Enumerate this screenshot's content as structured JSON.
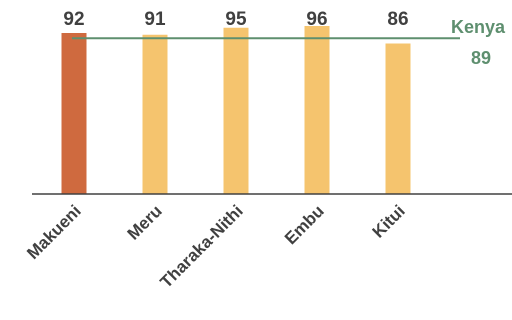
{
  "chart_data": {
    "type": "bar",
    "categories": [
      "Makueni",
      "Meru",
      "Tharaka-Nithi",
      "Embu",
      "Kitui"
    ],
    "values": [
      92,
      91,
      95,
      96,
      86
    ],
    "highlight_category": "Makueni",
    "colors": {
      "highlight": "#cf6a3f",
      "bar": "#f5c46e",
      "reference": "#5e8f6f",
      "axis": "#404040",
      "text": "#404040"
    },
    "reference_line": {
      "label": "Kenya",
      "value": 89,
      "value_label": "89"
    },
    "value_labels": [
      "92",
      "91",
      "95",
      "96",
      "86"
    ],
    "title": "",
    "xlabel": "",
    "ylabel": "",
    "ylim": [
      0,
      100
    ],
    "grid": false,
    "legend": "none"
  }
}
